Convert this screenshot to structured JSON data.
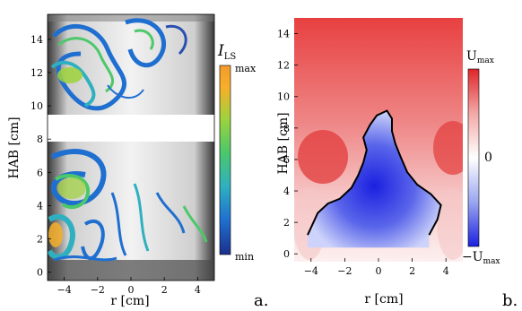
{
  "panel_a": {
    "label": "a.",
    "xlabel": "r [cm]",
    "ylabel": "HAB [cm]",
    "xticks": [
      "−4",
      "−2",
      "0",
      "2",
      "4"
    ],
    "yticks": [
      "0",
      "2",
      "4",
      "6",
      "8",
      "10",
      "12",
      "14"
    ],
    "colorbar": {
      "title": "I",
      "title_sub": "LS",
      "max_label": "max",
      "min_label": "min",
      "colors": [
        "#1c2f8c",
        "#1f6fd0",
        "#2fb0c0",
        "#4cc86a",
        "#9fd23c",
        "#f6b02a",
        "#f39a2c"
      ]
    }
  },
  "panel_b": {
    "label": "b.",
    "xlabel": "r [cm]",
    "ylabel": "HAB [cm]",
    "xticks": [
      "−4",
      "−2",
      "0",
      "2",
      "4"
    ],
    "yticks": [
      "0",
      "2",
      "4",
      "6",
      "8",
      "10",
      "12",
      "14"
    ],
    "colorbar": {
      "max_label": "U",
      "max_sub": "max",
      "zero_label": "0",
      "min_label": "−U",
      "min_sub": "max",
      "colors": [
        "#e0252a",
        "#f3a8a6",
        "#ffffff",
        "#9aa6f0",
        "#1b20e0"
      ]
    }
  },
  "chart_data": [
    {
      "type": "heatmap",
      "xlabel": "r [cm]",
      "ylabel": "HAB [cm]",
      "xlim": [
        -5,
        5
      ],
      "ylim": [
        -0.5,
        15.5
      ],
      "colorbar_range": [
        "min",
        "max"
      ]
    },
    {
      "type": "heatmap",
      "xlabel": "r [cm]",
      "ylabel": "HAB [cm]",
      "xlim": [
        -5,
        5
      ],
      "ylim": [
        -0.5,
        15
      ],
      "colorbar_range": [
        "−Umax",
        "0",
        "Umax"
      ],
      "contour_boundary": [
        [
          -4.2,
          1.2
        ],
        [
          -3.6,
          2.6
        ],
        [
          -3.0,
          3.2
        ],
        [
          -2.3,
          3.5
        ],
        [
          -1.6,
          4.2
        ],
        [
          -1.2,
          5.0
        ],
        [
          -0.9,
          5.8
        ],
        [
          -0.7,
          6.6
        ],
        [
          -0.9,
          7.4
        ],
        [
          -0.5,
          8.2
        ],
        [
          -0.1,
          8.8
        ],
        [
          0.5,
          9.1
        ],
        [
          0.8,
          8.6
        ],
        [
          0.8,
          7.8
        ],
        [
          1.0,
          7.0
        ],
        [
          1.3,
          6.2
        ],
        [
          1.7,
          5.2
        ],
        [
          2.3,
          4.4
        ],
        [
          3.1,
          3.8
        ],
        [
          3.7,
          3.1
        ],
        [
          3.5,
          2.2
        ],
        [
          3.0,
          1.2
        ]
      ]
    }
  ]
}
